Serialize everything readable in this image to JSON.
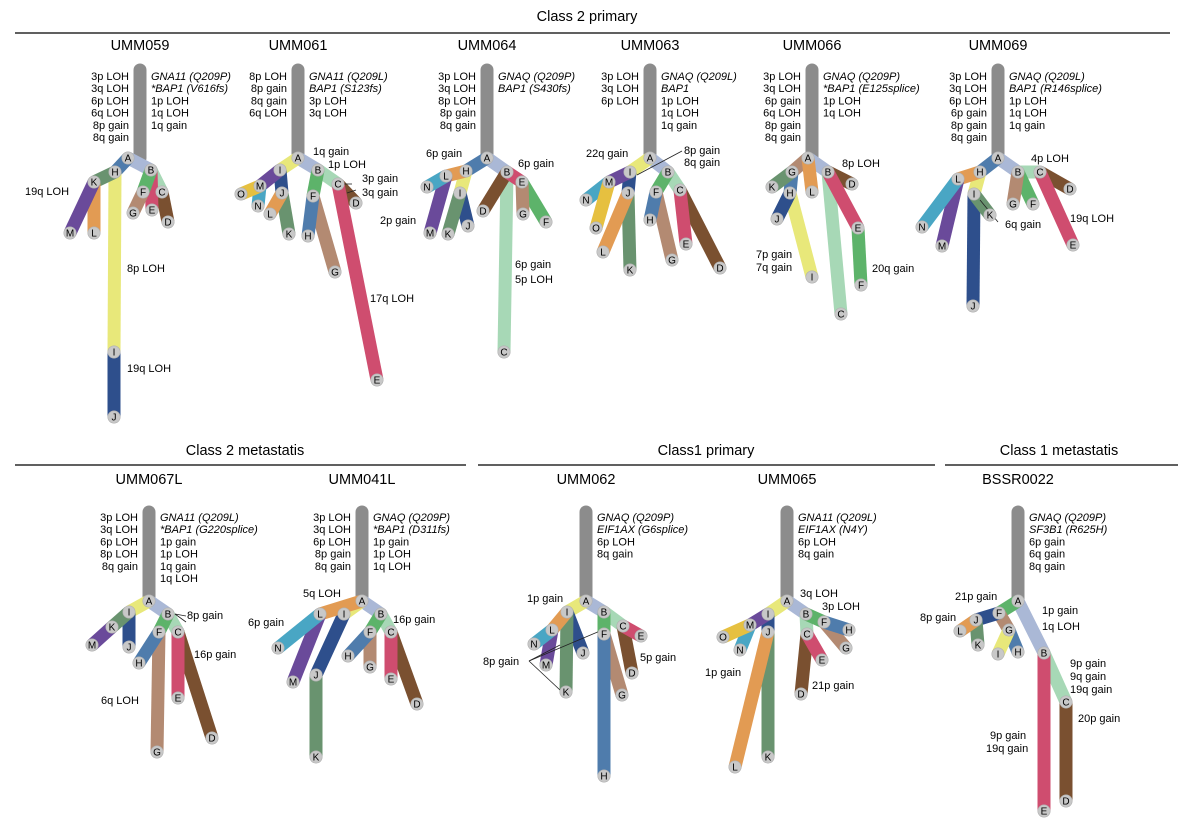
{
  "section_titles": {
    "class2_primary": "Class 2 primary",
    "class2_metastasis": "Class 2 metastatis",
    "class1_primary": "Class1 primary",
    "class1_metastasis": "Class 1 metastatis"
  },
  "colors": {
    "trunk": "#8c8c8c",
    "node_fill": "#c8c8c8",
    "node_stroke": "#b0b0b0",
    "A": "#9bb0d2",
    "B": "#aab8d6",
    "C": "#a7d8b6",
    "D": "#7a5030",
    "E": "#cf4d6f",
    "F": "#5db36a",
    "G": "#b38a72",
    "H": "#4f7cac",
    "I": "#e8e87a",
    "J": "#2e4f8c",
    "K": "#69936f",
    "L": "#e29b53",
    "M": "#6a4a9a",
    "N": "#49a6c4",
    "O": "#e6c040",
    "P": "#6a8eb8",
    "Q": "#d06090"
  },
  "samples": [
    {
      "name": "UMM059",
      "lines": [
        {
          "t": "3p LOH",
          "a": "e"
        },
        {
          "t": "GNA11 (Q209P)",
          "i": true
        },
        {
          "t": "3q LOH",
          "a": "e"
        },
        {
          "t": "*BAP1 (V616fs)",
          "i": true
        },
        {
          "t": "6p LOH",
          "a": "e"
        },
        {
          "t": "1p LOH"
        },
        {
          "t": "6q LOH",
          "a": "e"
        },
        {
          "t": "1q LOH"
        },
        {
          "t": "8p gain",
          "a": "e"
        },
        {
          "t": "1q gain"
        },
        {
          "t": "8q gain",
          "a": "e"
        }
      ],
      "branch_labels": [
        "19q LOH",
        "8p LOH",
        "19q LOH"
      ],
      "nodes": [
        "A",
        "B",
        "C",
        "D",
        "E",
        "F",
        "G",
        "H",
        "I",
        "J",
        "K",
        "L",
        "M"
      ]
    },
    {
      "name": "UMM061",
      "lines": [
        {
          "t": "8p LOH",
          "a": "e"
        },
        {
          "t": "GNA11 (Q209L)",
          "i": true
        },
        {
          "t": "8p gain",
          "a": "e"
        },
        {
          "t": "BAP1 (S123fs)",
          "i": true
        },
        {
          "t": "8q gain",
          "a": "e"
        },
        {
          "t": "3p LOH"
        },
        {
          "t": "6q LOH",
          "a": "e"
        },
        {
          "t": "3q LOH"
        }
      ],
      "branch_labels": [
        "1q gain",
        "1p LOH",
        "3p gain",
        "3q gain",
        "2p gain",
        "17q LOH"
      ],
      "nodes": [
        "A",
        "B",
        "C",
        "D",
        "E",
        "F",
        "G",
        "H",
        "I",
        "J",
        "K",
        "L",
        "M",
        "N",
        "O"
      ]
    },
    {
      "name": "UMM064",
      "lines": [
        {
          "t": "3p LOH",
          "a": "e"
        },
        {
          "t": "GNAQ (Q209P)",
          "i": true
        },
        {
          "t": "3q LOH",
          "a": "e"
        },
        {
          "t": "BAP1 (S430fs)",
          "i": true
        },
        {
          "t": "8p LOH",
          "a": "e"
        },
        {
          "t": "8p gain",
          "a": "e"
        },
        {
          "t": "8q gain",
          "a": "e"
        }
      ],
      "branch_labels": [
        "6p gain",
        "6p gain",
        "5p LOH",
        "6p gain"
      ],
      "nodes": [
        "A",
        "B",
        "C",
        "D",
        "E",
        "F",
        "G",
        "H",
        "I",
        "J",
        "K",
        "L",
        "M",
        "N"
      ]
    },
    {
      "name": "UMM063",
      "lines": [
        {
          "t": "3p LOH",
          "a": "e"
        },
        {
          "t": "GNAQ (Q209L)",
          "i": true
        },
        {
          "t": "3q LOH",
          "a": "e"
        },
        {
          "t": "BAP1",
          "i": true
        },
        {
          "t": "6p LOH",
          "a": "e"
        },
        {
          "t": "1p LOH"
        },
        {
          "t": "1q LOH"
        },
        {
          "t": "1q gain"
        }
      ],
      "branch_labels": [
        "22q gain",
        "8p gain",
        "8q gain"
      ],
      "nodes": [
        "A",
        "B",
        "C",
        "D",
        "E",
        "F",
        "G",
        "H",
        "I",
        "J",
        "K",
        "L",
        "M",
        "N",
        "O"
      ]
    },
    {
      "name": "UMM066",
      "lines": [
        {
          "t": "3p LOH",
          "a": "e"
        },
        {
          "t": "GNAQ (Q209P)",
          "i": true
        },
        {
          "t": "3q LOH",
          "a": "e"
        },
        {
          "t": "*BAP1 (E125splice)",
          "i": true
        },
        {
          "t": "6p gain",
          "a": "e"
        },
        {
          "t": "1p LOH"
        },
        {
          "t": "6q LOH",
          "a": "e"
        },
        {
          "t": "1q LOH"
        },
        {
          "t": "8p gain",
          "a": "e"
        },
        {
          "t": "8q gain",
          "a": "e"
        }
      ],
      "branch_labels": [
        "8p LOH",
        "7p gain",
        "7q gain",
        "20q gain"
      ],
      "nodes": [
        "A",
        "B",
        "C",
        "D",
        "E",
        "F",
        "G",
        "H",
        "I",
        "J",
        "K",
        "L"
      ]
    },
    {
      "name": "UMM069",
      "lines": [
        {
          "t": "3p LOH",
          "a": "e"
        },
        {
          "t": "GNAQ (Q209L)",
          "i": true
        },
        {
          "t": "3q LOH",
          "a": "e"
        },
        {
          "t": "BAP1 (R146splice)",
          "i": true
        },
        {
          "t": "6p LOH",
          "a": "e"
        },
        {
          "t": "1p LOH"
        },
        {
          "t": "6p gain",
          "a": "e"
        },
        {
          "t": "1q LOH"
        },
        {
          "t": "8p gain",
          "a": "e"
        },
        {
          "t": "1q gain"
        },
        {
          "t": "8q gain",
          "a": "e"
        }
      ],
      "branch_labels": [
        "4p LOH",
        "6q gain",
        "19q LOH"
      ],
      "nodes": [
        "A",
        "B",
        "C",
        "D",
        "E",
        "F",
        "G",
        "H",
        "I",
        "J",
        "K",
        "L",
        "M",
        "N"
      ]
    },
    {
      "name": "UMM067L",
      "lines": [
        {
          "t": "3p LOH",
          "a": "e"
        },
        {
          "t": "GNA11 (Q209L)",
          "i": true
        },
        {
          "t": "3q LOH",
          "a": "e"
        },
        {
          "t": "*BAP1 (G220splice)",
          "i": true
        },
        {
          "t": "6p LOH",
          "a": "e"
        },
        {
          "t": "1p gain"
        },
        {
          "t": "8p LOH",
          "a": "e"
        },
        {
          "t": "1p LOH"
        },
        {
          "t": "8q gain",
          "a": "e"
        },
        {
          "t": "1q gain"
        },
        {
          "t": "1q LOH"
        }
      ],
      "branch_labels": [
        "8p gain",
        "16p gain",
        "6q LOH"
      ],
      "nodes": [
        "A",
        "B",
        "C",
        "D",
        "E",
        "F",
        "G",
        "H",
        "I",
        "J",
        "K",
        "M"
      ]
    },
    {
      "name": "UMM041L",
      "lines": [
        {
          "t": "3p LOH",
          "a": "e"
        },
        {
          "t": "GNAQ (Q209P)",
          "i": true
        },
        {
          "t": "3q LOH",
          "a": "e"
        },
        {
          "t": "*BAP1 (D311fs)",
          "i": true
        },
        {
          "t": "6p LOH",
          "a": "e"
        },
        {
          "t": "1p gain"
        },
        {
          "t": "8p gain",
          "a": "e"
        },
        {
          "t": "1p LOH"
        },
        {
          "t": "8q gain",
          "a": "e"
        },
        {
          "t": "1q LOH"
        }
      ],
      "branch_labels": [
        "5q LOH",
        "6p gain",
        "16p gain"
      ],
      "nodes": [
        "A",
        "B",
        "C",
        "D",
        "E",
        "F",
        "G",
        "H",
        "I",
        "J",
        "K",
        "L",
        "M",
        "N"
      ]
    },
    {
      "name": "UMM062",
      "lines": [
        {
          "t": "GNAQ (Q209P)",
          "i": true
        },
        {
          "t": "EIF1AX (G6splice)",
          "i": true
        },
        {
          "t": "6p LOH"
        },
        {
          "t": "8q gain"
        }
      ],
      "branch_labels": [
        "1p gain",
        "8p gain",
        "5p gain"
      ],
      "nodes": [
        "A",
        "B",
        "C",
        "D",
        "E",
        "F",
        "G",
        "H",
        "I",
        "J",
        "K",
        "L",
        "M",
        "N"
      ]
    },
    {
      "name": "UMM065",
      "lines": [
        {
          "t": "GNA11 (Q209L)",
          "i": true
        },
        {
          "t": "EIF1AX (N4Y)",
          "i": true
        },
        {
          "t": "6p LOH"
        },
        {
          "t": "8q gain"
        }
      ],
      "branch_labels": [
        "3q LOH",
        "3p LOH",
        "1p gain",
        "21p gain"
      ],
      "nodes": [
        "A",
        "B",
        "C",
        "D",
        "E",
        "F",
        "G",
        "H",
        "I",
        "J",
        "K",
        "L",
        "M",
        "N",
        "O"
      ]
    },
    {
      "name": "BSSR0022",
      "lines": [
        {
          "t": "GNAQ (Q209P)",
          "i": true
        },
        {
          "t": "SF3B1 (R625H)",
          "i": true
        },
        {
          "t": "6p gain"
        },
        {
          "t": "6q gain"
        },
        {
          "t": "8q gain"
        }
      ],
      "branch_labels": [
        "21p gain",
        "8p gain",
        "1p gain",
        "1q LOH",
        "9p gain",
        "9q gain",
        "19q gain",
        "20p gain",
        "9p gain",
        "19q gain"
      ],
      "nodes": [
        "A",
        "B",
        "C",
        "D",
        "E",
        "F",
        "G",
        "H",
        "I",
        "J",
        "K",
        "L"
      ]
    }
  ]
}
